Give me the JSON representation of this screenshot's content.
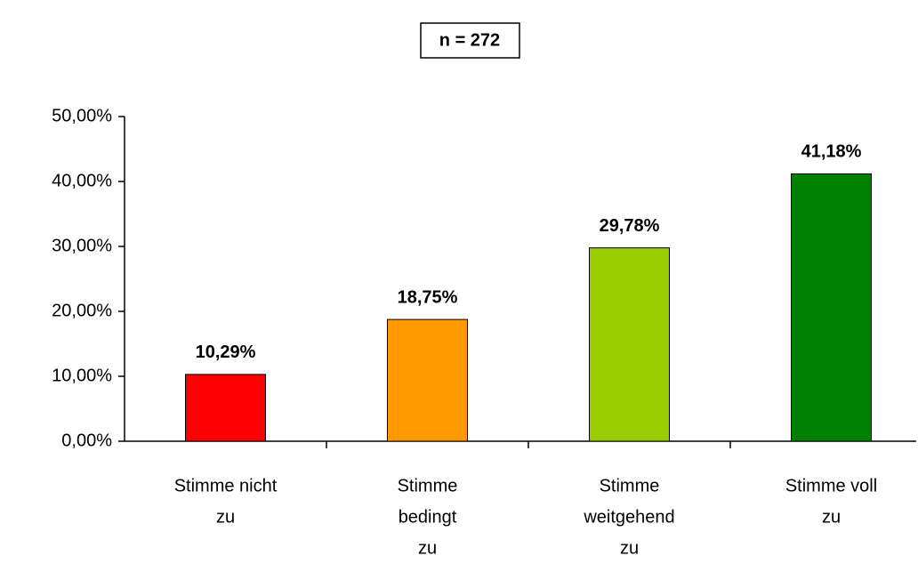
{
  "chart_data": {
    "type": "bar",
    "title": "n = 272",
    "categories": [
      [
        "Stimme nicht",
        "zu"
      ],
      [
        "Stimme",
        "bedingt",
        "zu"
      ],
      [
        "Stimme",
        "weitgehend",
        "zu"
      ],
      [
        "Stimme voll",
        "zu"
      ]
    ],
    "values": [
      10.29,
      18.75,
      29.78,
      41.18
    ],
    "value_labels": [
      "10,29%",
      "18,75%",
      "29,78%",
      "41,18%"
    ],
    "colors": [
      "#ff0000",
      "#ff9900",
      "#99cc00",
      "#008000"
    ],
    "ylim": [
      0,
      50
    ],
    "yticks": [
      {
        "value": 0,
        "label": "0,00%"
      },
      {
        "value": 10,
        "label": "10,00%"
      },
      {
        "value": 20,
        "label": "20,00%"
      },
      {
        "value": 30,
        "label": "30,00%"
      },
      {
        "value": 40,
        "label": "40,00%"
      },
      {
        "value": 50,
        "label": "50,00%"
      }
    ],
    "grid": false
  }
}
